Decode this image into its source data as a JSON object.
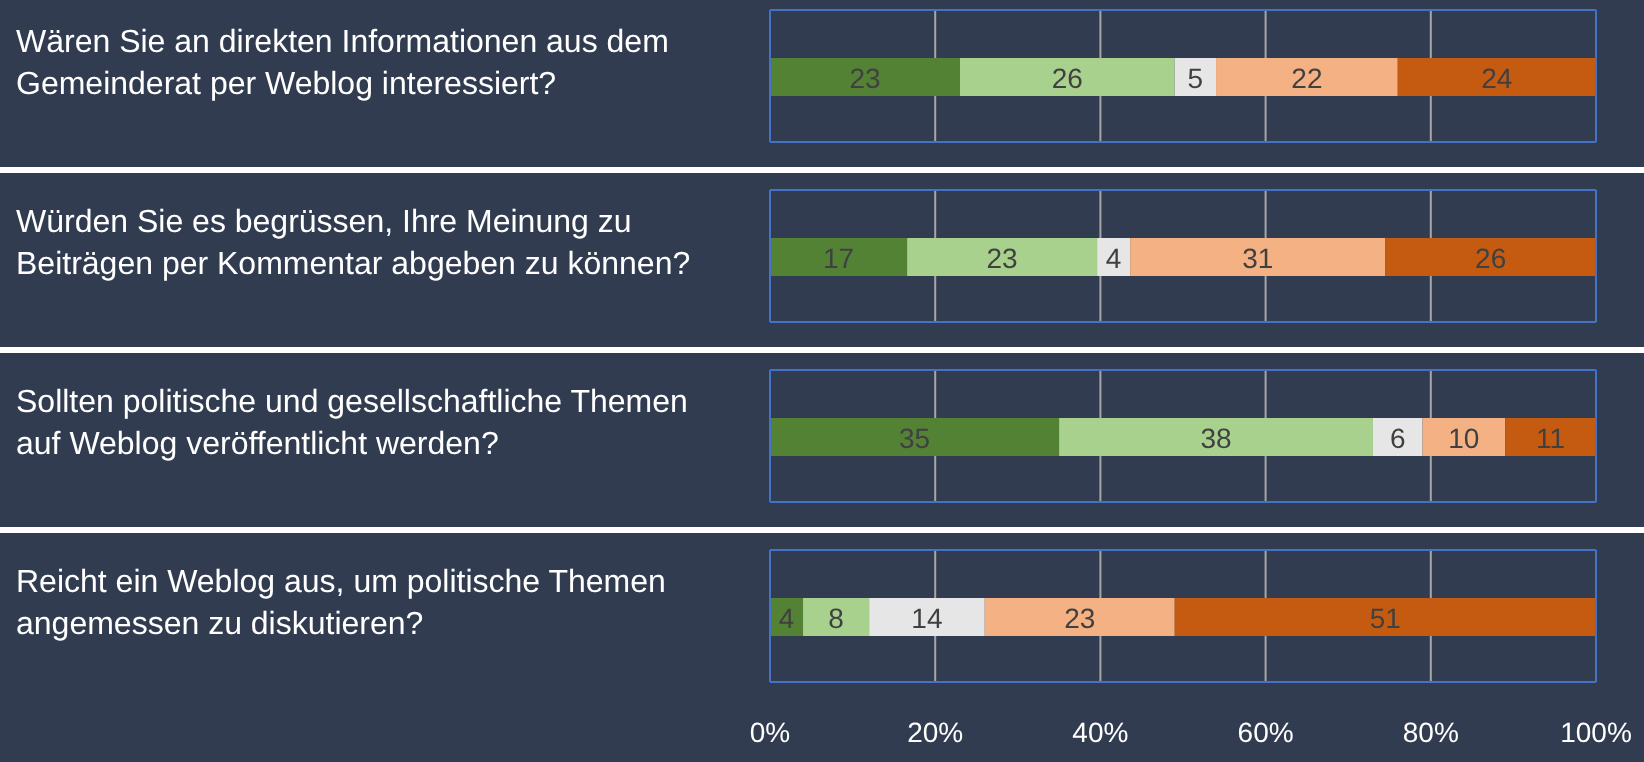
{
  "chart_data": {
    "type": "bar",
    "orientation": "horizontal",
    "stacked": true,
    "categories": [
      "Wären Sie an direkten Informationen aus dem Gemeinderat per Weblog interessiert?",
      "Würden Sie es begrüssen, Ihre Meinung zu Beiträgen per Kommentar abgeben zu können?",
      "Sollten politische und gesellschaftliche Themen auf Weblog veröffentlicht werden?",
      "Reicht ein Weblog aus, um politische Themen angemessen zu diskutieren?"
    ],
    "series": [
      {
        "color": "#548235",
        "values": [
          23,
          16.6,
          35,
          4
        ],
        "value_labels": [
          "23",
          "17",
          "35",
          "4"
        ]
      },
      {
        "color": "#a9d18e",
        "values": [
          26,
          23,
          38,
          8
        ],
        "value_labels": [
          "26",
          "23",
          "38",
          "8"
        ]
      },
      {
        "color": "#e7e6e6",
        "values": [
          5,
          4,
          6,
          14
        ],
        "value_labels": [
          "5",
          "4",
          "6",
          "14"
        ]
      },
      {
        "color": "#f4b183",
        "values": [
          22,
          30.9,
          10,
          23
        ],
        "value_labels": [
          "22",
          "31",
          "10",
          "23"
        ]
      },
      {
        "color": "#c55a11",
        "values": [
          24,
          25.5,
          11,
          51
        ],
        "value_labels": [
          "24",
          "26",
          "11",
          "51"
        ]
      }
    ],
    "xlim": [
      0,
      100
    ],
    "xticks": [
      {
        "value": 0,
        "label": "0%"
      },
      {
        "value": 20,
        "label": "20%"
      },
      {
        "value": 40,
        "label": "40%"
      },
      {
        "value": 60,
        "label": "60%"
      },
      {
        "value": 80,
        "label": "80%"
      },
      {
        "value": 100,
        "label": "100%"
      }
    ],
    "grid": "x"
  }
}
